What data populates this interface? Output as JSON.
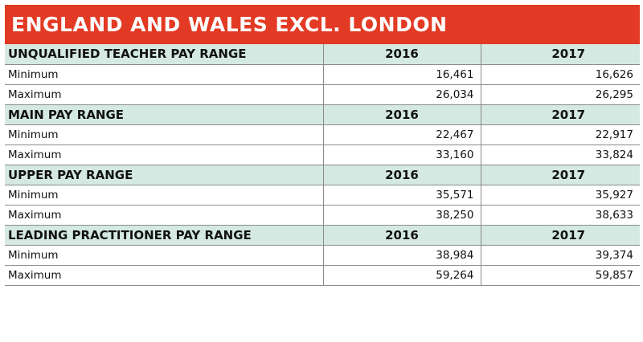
{
  "title": "ENGLAND AND WALES EXCL. LONDON",
  "colors": {
    "title_bar": "#e23a24",
    "section_header": "#d4e9e2"
  },
  "sections": [
    {
      "heading": "UNQUALIFIED TEACHER PAY RANGE",
      "col1": "2016",
      "col2": "2017",
      "rows": [
        {
          "label": "Minimum",
          "v2016": "16,461",
          "v2017": "16,626"
        },
        {
          "label": "Maximum",
          "v2016": "26,034",
          "v2017": "26,295"
        }
      ]
    },
    {
      "heading": "MAIN PAY RANGE",
      "col1": "2016",
      "col2": "2017",
      "rows": [
        {
          "label": "Minimum",
          "v2016": "22,467",
          "v2017": "22,917"
        },
        {
          "label": "Maximum",
          "v2016": "33,160",
          "v2017": "33,824"
        }
      ]
    },
    {
      "heading": "UPPER PAY RANGE",
      "col1": "2016",
      "col2": "2017",
      "rows": [
        {
          "label": "Minimum",
          "v2016": "35,571",
          "v2017": "35,927"
        },
        {
          "label": "Maximum",
          "v2016": "38,250",
          "v2017": "38,633"
        }
      ]
    },
    {
      "heading": "LEADING PRACTITIONER PAY RANGE",
      "col1": "2016",
      "col2": "2017",
      "rows": [
        {
          "label": "Minimum",
          "v2016": "38,984",
          "v2017": "39,374"
        },
        {
          "label": "Maximum",
          "v2016": "59,264",
          "v2017": "59,857"
        }
      ]
    }
  ]
}
